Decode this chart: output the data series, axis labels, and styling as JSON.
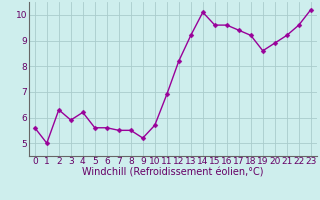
{
  "x": [
    0,
    1,
    2,
    3,
    4,
    5,
    6,
    7,
    8,
    9,
    10,
    11,
    12,
    13,
    14,
    15,
    16,
    17,
    18,
    19,
    20,
    21,
    22,
    23
  ],
  "y": [
    5.6,
    5.0,
    6.3,
    5.9,
    6.2,
    5.6,
    5.6,
    5.5,
    5.5,
    5.2,
    5.7,
    6.9,
    8.2,
    9.2,
    10.1,
    9.6,
    9.6,
    9.4,
    9.2,
    8.6,
    8.9,
    9.2,
    9.6,
    10.2
  ],
  "line_color": "#990099",
  "marker": "D",
  "markersize": 2.5,
  "linewidth": 1.0,
  "bg_color": "#ceeeed",
  "grid_color": "#aacccc",
  "xlabel": "Windchill (Refroidissement éolien,°C)",
  "ylabel": "",
  "ylim": [
    4.5,
    10.5
  ],
  "xlim": [
    -0.5,
    23.5
  ],
  "yticks": [
    5,
    6,
    7,
    8,
    9,
    10
  ],
  "xticks": [
    0,
    1,
    2,
    3,
    4,
    5,
    6,
    7,
    8,
    9,
    10,
    11,
    12,
    13,
    14,
    15,
    16,
    17,
    18,
    19,
    20,
    21,
    22,
    23
  ],
  "tick_color": "#660066",
  "label_color": "#660066",
  "spine_color": "#666666",
  "tick_fontsize": 6.5,
  "xlabel_fontsize": 7.0
}
